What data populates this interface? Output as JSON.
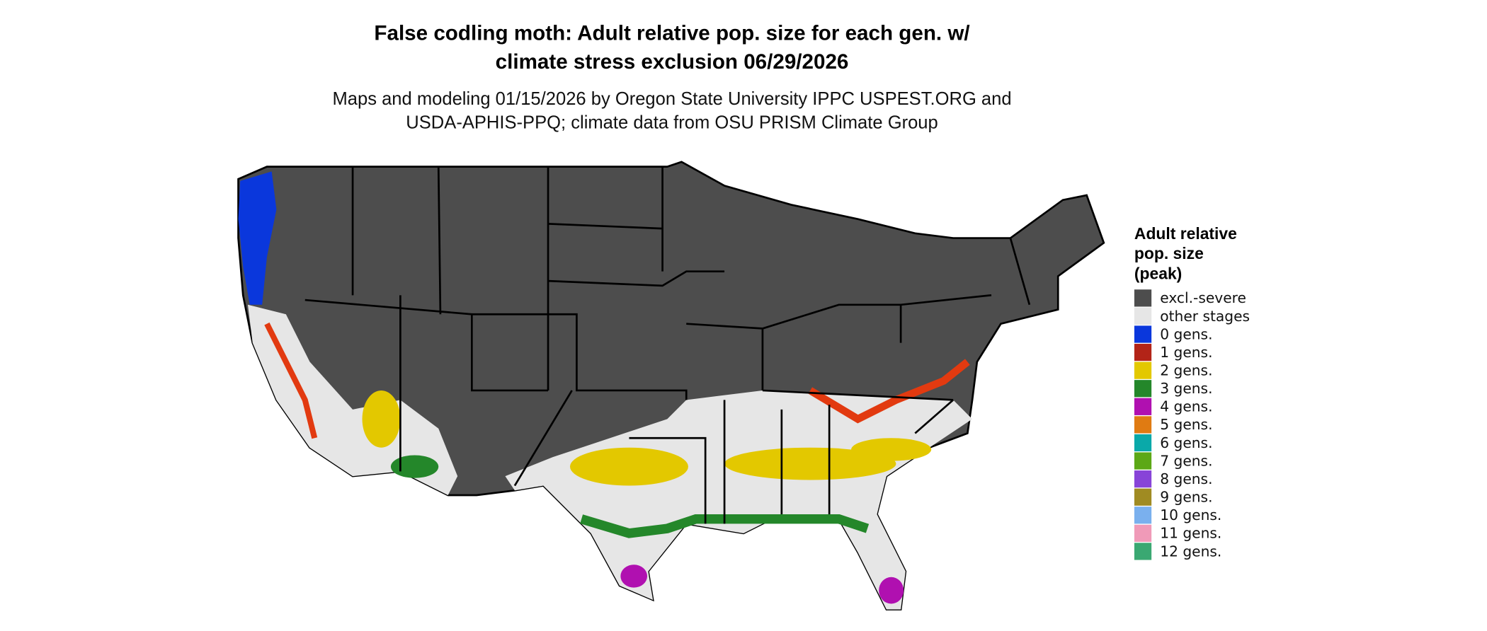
{
  "title": [
    "False codling moth: Adult relative pop. size for each gen. w/",
    "climate stress exclusion 06/29/2026"
  ],
  "subtitle": [
    "Maps and modeling 01/15/2026 by Oregon State University IPPC USPEST.ORG and",
    "USDA-APHIS-PPQ; climate data from OSU PRISM Climate Group"
  ],
  "legend": {
    "title": [
      "Adult relative",
      "pop. size",
      "(peak)"
    ],
    "items": [
      {
        "label": "excl.-severe",
        "color": "#4d4d4d"
      },
      {
        "label": "other stages",
        "color": "#e6e6e6"
      },
      {
        "label": "0 gens.",
        "color": "#0a37dc"
      },
      {
        "label": "1 gens.",
        "color": "#b32418"
      },
      {
        "label": "2 gens.",
        "color": "#e3c800"
      },
      {
        "label": "3 gens.",
        "color": "#24872a"
      },
      {
        "label": "4 gens.",
        "color": "#b010b0"
      },
      {
        "label": "5 gens.",
        "color": "#e07b12"
      },
      {
        "label": "6 gens.",
        "color": "#0aa9a9"
      },
      {
        "label": "7 gens.",
        "color": "#5ca816"
      },
      {
        "label": "8 gens.",
        "color": "#8844d8"
      },
      {
        "label": "9 gens.",
        "color": "#a08b22"
      },
      {
        "label": "10 gens.",
        "color": "#7ab0ee"
      },
      {
        "label": "11 gens.",
        "color": "#f09ab8"
      },
      {
        "label": "12 gens.",
        "color": "#3aa872"
      }
    ]
  }
}
